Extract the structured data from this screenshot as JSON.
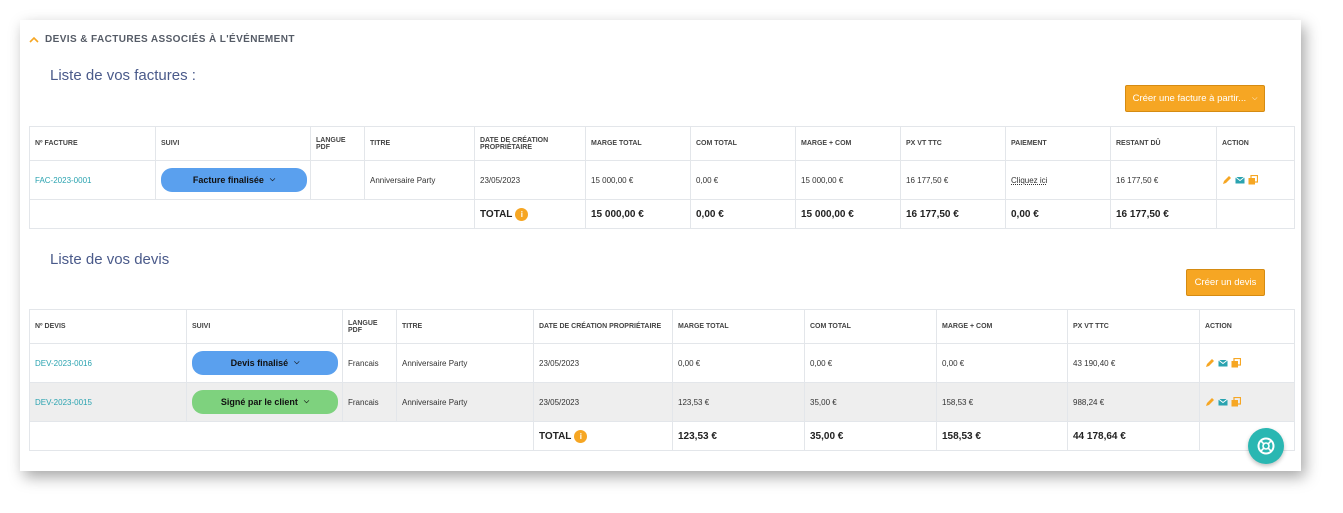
{
  "section": {
    "title": "DEVIS & FACTURES ASSOCIÉS À L'ÉVÉNEMENT"
  },
  "invoices": {
    "heading": "Liste de vos factures :",
    "create_button": "Créer une facture à partir...",
    "columns": [
      "Nº FACTURE",
      "SUIVI",
      "LANGUE PDF",
      "TITRE",
      "DATE DE CRÉATION PROPRIÉTAIRE",
      "MARGE TOTAL",
      "COM TOTAL",
      "MARGE + COM",
      "PX VT TTC",
      "PAIEMENT",
      "RESTANT DÛ",
      "ACTION"
    ],
    "rows": [
      {
        "number": "FAC-2023-0001",
        "status": "Facture finalisée",
        "lang": "",
        "title": "Anniversaire Party",
        "date": "23/05/2023",
        "marge": "15 000,00 €",
        "com": "0,00 €",
        "marge_com": "15 000,00 €",
        "px_ttc": "16 177,50 €",
        "payment": "Cliquez ici",
        "remaining": "16 177,50 €"
      }
    ],
    "total": {
      "label": "TOTAL",
      "marge": "15 000,00 €",
      "com": "0,00 €",
      "marge_com": "15 000,00 €",
      "px_ttc": "16 177,50 €",
      "payment": "0,00 €",
      "remaining": "16 177,50 €"
    }
  },
  "quotes": {
    "heading": "Liste de vos devis",
    "create_button": "Créer un devis",
    "columns": [
      "Nº DEVIS",
      "SUIVI",
      "LANGUE PDF",
      "TITRE",
      "DATE DE CRÉATION PROPRIÉTAIRE",
      "MARGE TOTAL",
      "COM TOTAL",
      "MARGE + COM",
      "PX VT TTC",
      "ACTION"
    ],
    "rows": [
      {
        "number": "DEV-2023-0016",
        "status": "Devis finalisé",
        "status_color": "blue",
        "lang": "Francais",
        "title": "Anniversaire Party",
        "date": "23/05/2023",
        "marge": "0,00 €",
        "com": "0,00 €",
        "marge_com": "0,00 €",
        "px_ttc": "43 190,40 €"
      },
      {
        "number": "DEV-2023-0015",
        "status": "Signé par le client",
        "status_color": "green",
        "lang": "Francais",
        "title": "Anniversaire Party",
        "date": "23/05/2023",
        "marge": "123,53 €",
        "com": "35,00 €",
        "marge_com": "158,53 €",
        "px_ttc": "988,24 €"
      }
    ],
    "total": {
      "label": "TOTAL",
      "marge": "123,53 €",
      "com": "35,00 €",
      "marge_com": "158,53 €",
      "px_ttc": "44 178,64 €"
    }
  },
  "info_icon_text": "i",
  "colors": {
    "accent": "#f6a623",
    "link": "#2aa3b0",
    "heading": "#4a5a8a",
    "pill_blue": "#5aa0ee",
    "pill_green": "#7ed27e",
    "fab": "#2ab7b2"
  },
  "icons": [
    "chevron-up-icon",
    "chevron-down-icon",
    "edit-icon",
    "mail-icon",
    "copy-icon",
    "info-icon",
    "support-icon"
  ]
}
